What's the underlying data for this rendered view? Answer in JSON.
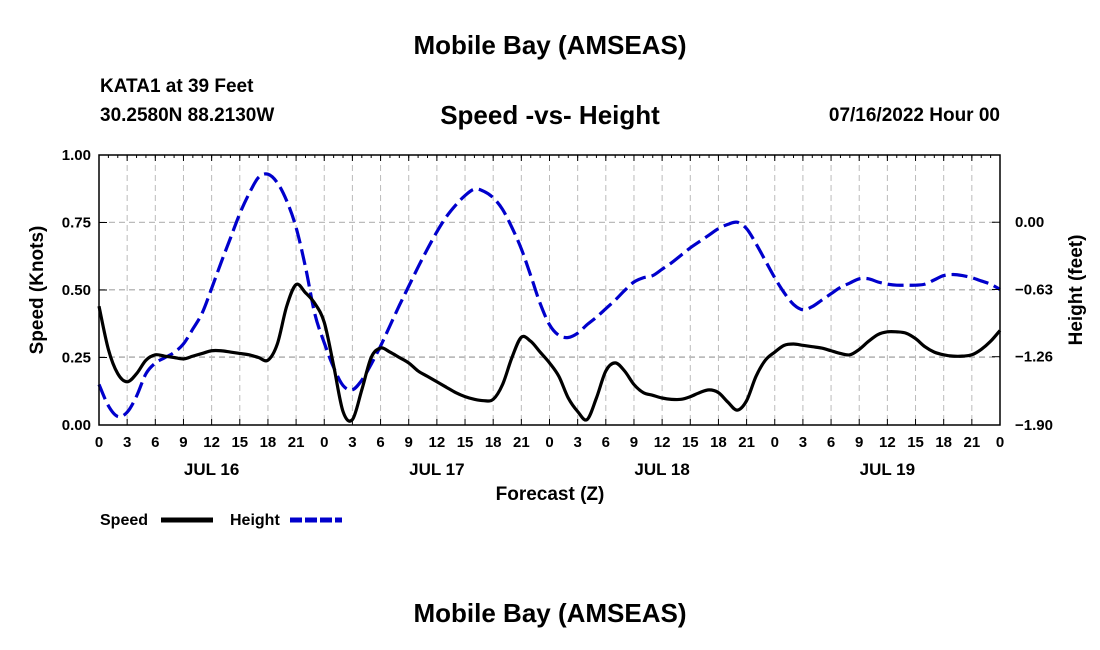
{
  "page": {
    "title_top": "Mobile Bay (AMSEAS)",
    "title_bottom": "Mobile Bay (AMSEAS)",
    "station": "KATA1 at 39 Feet",
    "coords": "30.2580N  88.2130W",
    "chart_title": "Speed -vs- Height",
    "run_time": "07/16/2022 Hour 00"
  },
  "colors": {
    "speed": "#000000",
    "height": "#0000cc",
    "grid": "#bbbbbb"
  },
  "chart_data": {
    "type": "line",
    "title": "Speed -vs- Height",
    "xlabel": "Forecast (Z)",
    "ylabel": "Speed (Knots)",
    "y2label": "Height (feet)",
    "xlim": [
      0,
      96
    ],
    "ylim": [
      0,
      1
    ],
    "y2lim": [
      -1.9,
      0.63
    ],
    "x_ticks": [
      0,
      3,
      6,
      9,
      12,
      15,
      18,
      21,
      24,
      27,
      30,
      33,
      36,
      39,
      42,
      45,
      48,
      51,
      54,
      57,
      60,
      63,
      66,
      69,
      72,
      75,
      78,
      81,
      84,
      87,
      90,
      93,
      96
    ],
    "x_tick_labels": [
      "0",
      "3",
      "6",
      "9",
      "12",
      "15",
      "18",
      "21",
      "0",
      "3",
      "6",
      "9",
      "12",
      "15",
      "18",
      "21",
      "0",
      "3",
      "6",
      "9",
      "12",
      "15",
      "18",
      "21",
      "0",
      "3",
      "6",
      "9",
      "12",
      "15",
      "18",
      "21",
      "0"
    ],
    "y_ticks": [
      0,
      0.25,
      0.5,
      0.75,
      1.0
    ],
    "y_tick_labels": [
      "0.00",
      "0.25",
      "0.50",
      "0.75",
      "1.00"
    ],
    "y2_ticks": [
      -1.9,
      -1.26,
      -0.63,
      0.0
    ],
    "y2_tick_labels": [
      "−1.90",
      "−1.26",
      "−0.63",
      "0.00"
    ],
    "day_labels": [
      {
        "x": 12,
        "label": "JUL 16"
      },
      {
        "x": 36,
        "label": "JUL 17"
      },
      {
        "x": 60,
        "label": "JUL 18"
      },
      {
        "x": 84,
        "label": "JUL 19"
      }
    ],
    "grid": true,
    "legend_position": "bottom-left",
    "series": [
      {
        "name": "Speed",
        "axis": "left",
        "style": "solid",
        "x": [
          0,
          1,
          2,
          3,
          4,
          5,
          6,
          7,
          8,
          9,
          10,
          11,
          12,
          13,
          14,
          15,
          16,
          17,
          18,
          19,
          20,
          21,
          22,
          23,
          24,
          25,
          26,
          27,
          28,
          29,
          30,
          31,
          32,
          33,
          34,
          35,
          36,
          37,
          38,
          39,
          40,
          41,
          42,
          43,
          44,
          45,
          46,
          47,
          48,
          49,
          50,
          51,
          52,
          53,
          54,
          55,
          56,
          57,
          58,
          59,
          60,
          61,
          62,
          63,
          64,
          65,
          66,
          67,
          68,
          69,
          70,
          71,
          72,
          73,
          74,
          75,
          76,
          77,
          78,
          79,
          80,
          81,
          82,
          83,
          84,
          85,
          86,
          87,
          88,
          89,
          90,
          91,
          92,
          93,
          94,
          95,
          96
        ],
        "values": [
          0.44,
          0.28,
          0.19,
          0.16,
          0.19,
          0.24,
          0.26,
          0.255,
          0.25,
          0.245,
          0.255,
          0.265,
          0.275,
          0.275,
          0.27,
          0.265,
          0.26,
          0.25,
          0.24,
          0.3,
          0.44,
          0.52,
          0.49,
          0.45,
          0.38,
          0.22,
          0.05,
          0.02,
          0.13,
          0.25,
          0.285,
          0.27,
          0.25,
          0.23,
          0.2,
          0.18,
          0.16,
          0.14,
          0.12,
          0.105,
          0.095,
          0.09,
          0.095,
          0.15,
          0.25,
          0.325,
          0.31,
          0.27,
          0.23,
          0.18,
          0.1,
          0.05,
          0.02,
          0.1,
          0.2,
          0.23,
          0.2,
          0.15,
          0.12,
          0.11,
          0.1,
          0.095,
          0.095,
          0.105,
          0.12,
          0.13,
          0.12,
          0.085,
          0.055,
          0.09,
          0.18,
          0.24,
          0.27,
          0.295,
          0.3,
          0.295,
          0.29,
          0.285,
          0.275,
          0.265,
          0.26,
          0.28,
          0.31,
          0.335,
          0.345,
          0.345,
          0.34,
          0.32,
          0.29,
          0.27,
          0.26,
          0.255,
          0.255,
          0.26,
          0.28,
          0.31,
          0.35
        ]
      },
      {
        "name": "Height",
        "axis": "right",
        "style": "dashed",
        "x": [
          0,
          1,
          2,
          3,
          4,
          5,
          6,
          7,
          8,
          9,
          10,
          11,
          12,
          13,
          14,
          15,
          16,
          17,
          18,
          19,
          20,
          21,
          22,
          23,
          24,
          25,
          26,
          27,
          28,
          29,
          30,
          31,
          32,
          33,
          34,
          35,
          36,
          37,
          38,
          39,
          40,
          41,
          42,
          43,
          44,
          45,
          46,
          47,
          48,
          49,
          50,
          51,
          52,
          53,
          54,
          55,
          56,
          57,
          58,
          59,
          60,
          61,
          62,
          63,
          64,
          65,
          66,
          67,
          68,
          69,
          70,
          71,
          72,
          73,
          74,
          75,
          76,
          77,
          78,
          79,
          80,
          81,
          82,
          83,
          84,
          85,
          86,
          87,
          88,
          89,
          90,
          91,
          92,
          93,
          94,
          95,
          96
        ],
        "values": [
          -1.52,
          -1.72,
          -1.82,
          -1.78,
          -1.63,
          -1.42,
          -1.32,
          -1.27,
          -1.22,
          -1.14,
          -1.0,
          -0.85,
          -0.62,
          -0.38,
          -0.15,
          0.08,
          0.27,
          0.42,
          0.45,
          0.37,
          0.2,
          -0.05,
          -0.42,
          -0.86,
          -1.13,
          -1.36,
          -1.53,
          -1.57,
          -1.48,
          -1.33,
          -1.16,
          -0.97,
          -0.78,
          -0.6,
          -0.42,
          -0.25,
          -0.09,
          0.05,
          0.16,
          0.25,
          0.31,
          0.29,
          0.23,
          0.12,
          -0.05,
          -0.25,
          -0.5,
          -0.76,
          -0.96,
          -1.06,
          -1.08,
          -1.04,
          -0.96,
          -0.89,
          -0.81,
          -0.73,
          -0.64,
          -0.56,
          -0.52,
          -0.5,
          -0.44,
          -0.38,
          -0.31,
          -0.24,
          -0.18,
          -0.12,
          -0.06,
          -0.02,
          0.0,
          -0.06,
          -0.2,
          -0.36,
          -0.52,
          -0.66,
          -0.77,
          -0.82,
          -0.79,
          -0.73,
          -0.67,
          -0.61,
          -0.57,
          -0.53,
          -0.53,
          -0.56,
          -0.58,
          -0.59,
          -0.59,
          -0.59,
          -0.58,
          -0.54,
          -0.5,
          -0.49,
          -0.5,
          -0.52,
          -0.55,
          -0.58,
          -0.63
        ]
      }
    ]
  }
}
